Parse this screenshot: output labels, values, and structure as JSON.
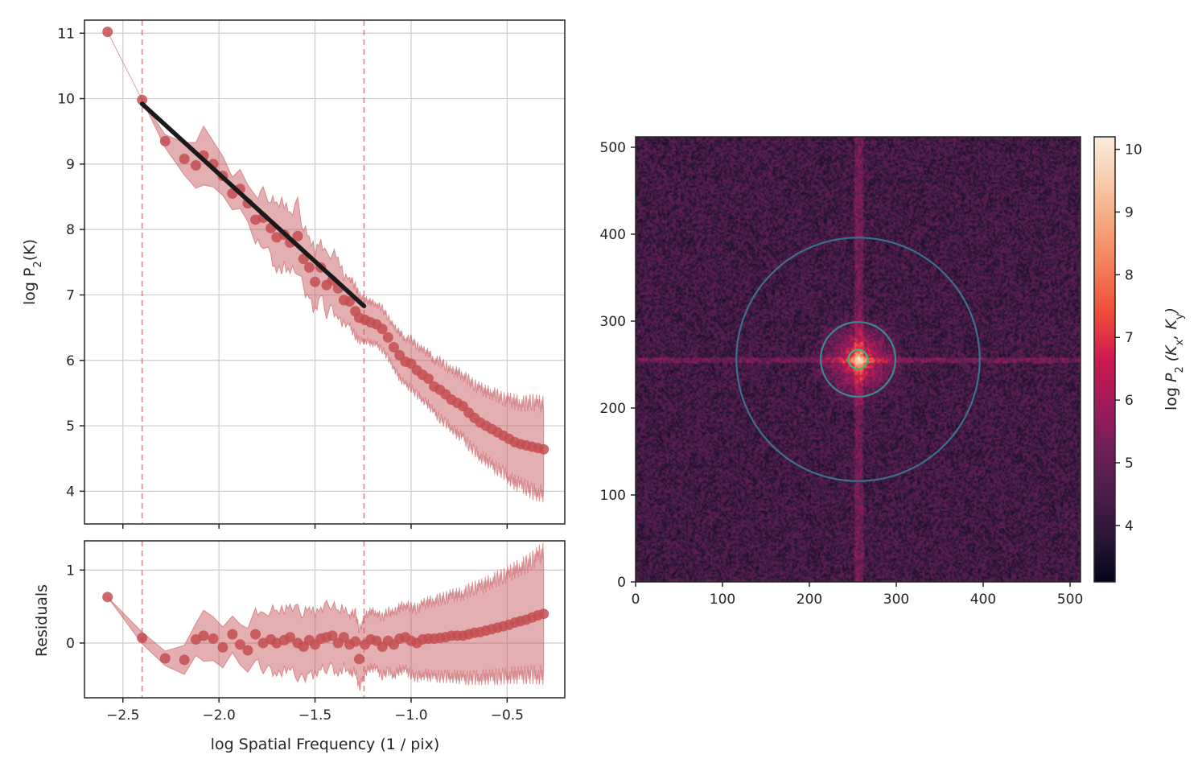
{
  "chart_data": [
    {
      "id": "power-spectrum",
      "type": "scatter",
      "xlim": [
        -2.7,
        -0.2
      ],
      "ylim": [
        3.5,
        11.2
      ],
      "xticks": [
        -2.5,
        -2.0,
        -1.5,
        -1.0,
        -0.5
      ],
      "xtick_labels": [
        "−2.5",
        "−2.0",
        "−1.5",
        "−1.0",
        "−0.5"
      ],
      "yticks": [
        4,
        5,
        6,
        7,
        8,
        9,
        10,
        11
      ],
      "ylabel_main": "log P",
      "ylabel_sub": "2",
      "ylabel_tail": "(K)",
      "grid": true,
      "color": "#c44e52",
      "fit_color": "#1a1a1a",
      "vlines": [
        -2.4,
        -1.245
      ],
      "fit_line": {
        "x": [
          -2.4,
          -1.245
        ],
        "y": [
          9.92,
          6.83
        ]
      },
      "points": {
        "x": [
          -2.58,
          -2.4,
          -2.28,
          -2.18,
          -2.12,
          -2.08,
          -2.03,
          -1.98,
          -1.93,
          -1.89,
          -1.85,
          -1.81,
          -1.77,
          -1.73,
          -1.7,
          -1.66,
          -1.63,
          -1.59,
          -1.56,
          -1.53,
          -1.5,
          -1.47,
          -1.44,
          -1.41,
          -1.38,
          -1.35,
          -1.32,
          -1.29,
          -1.27,
          -1.24,
          -1.21,
          -1.18,
          -1.15,
          -1.12,
          -1.09,
          -1.06,
          -1.03,
          -1.0,
          -0.97,
          -0.94,
          -0.91,
          -0.88,
          -0.85,
          -0.82,
          -0.79,
          -0.76,
          -0.73,
          -0.7,
          -0.67,
          -0.64,
          -0.61,
          -0.58,
          -0.55,
          -0.52,
          -0.49,
          -0.46,
          -0.43,
          -0.4,
          -0.37,
          -0.34,
          -0.31
        ],
        "y": [
          11.02,
          9.98,
          9.35,
          9.08,
          8.98,
          9.13,
          9.0,
          8.82,
          8.55,
          8.62,
          8.4,
          8.15,
          8.18,
          8.02,
          7.88,
          7.92,
          7.8,
          7.9,
          7.55,
          7.42,
          7.2,
          7.42,
          7.15,
          7.22,
          7.1,
          6.92,
          6.9,
          6.75,
          6.65,
          6.62,
          6.58,
          6.55,
          6.48,
          6.35,
          6.2,
          6.08,
          5.98,
          5.95,
          5.85,
          5.78,
          5.72,
          5.6,
          5.55,
          5.48,
          5.4,
          5.35,
          5.3,
          5.2,
          5.12,
          5.05,
          5.0,
          4.95,
          4.9,
          4.85,
          4.8,
          4.75,
          4.72,
          4.7,
          4.68,
          4.66,
          4.64
        ],
        "err": [
          0.0,
          0.0,
          0.1,
          0.25,
          0.35,
          0.45,
          0.35,
          0.3,
          0.25,
          0.3,
          0.28,
          0.3,
          0.32,
          0.35,
          0.4,
          0.4,
          0.38,
          0.4,
          0.38,
          0.35,
          0.38,
          0.35,
          0.35,
          0.35,
          0.35,
          0.3,
          0.3,
          0.3,
          0.28,
          0.25,
          0.25,
          0.25,
          0.25,
          0.25,
          0.25,
          0.28,
          0.28,
          0.3,
          0.3,
          0.3,
          0.32,
          0.32,
          0.35,
          0.35,
          0.35,
          0.38,
          0.38,
          0.4,
          0.4,
          0.42,
          0.42,
          0.45,
          0.45,
          0.45,
          0.48,
          0.5,
          0.5,
          0.52,
          0.55,
          0.55,
          0.55
        ]
      }
    },
    {
      "id": "residuals",
      "type": "scatter",
      "xlim": [
        -2.7,
        -0.2
      ],
      "ylim": [
        -0.75,
        1.4
      ],
      "yticks": [
        0,
        1
      ],
      "ytick_labels": [
        "0",
        "1"
      ],
      "xlabel": "log Spatial Frequency (1 / pix)",
      "ylabel": "Residuals",
      "grid": true,
      "color": "#c44e52",
      "vlines": [
        -2.4,
        -1.245
      ],
      "points": {
        "x": [
          -2.58,
          -2.4,
          -2.28,
          -2.18,
          -2.12,
          -2.08,
          -2.03,
          -1.98,
          -1.93,
          -1.89,
          -1.85,
          -1.81,
          -1.77,
          -1.73,
          -1.7,
          -1.66,
          -1.63,
          -1.59,
          -1.56,
          -1.53,
          -1.5,
          -1.47,
          -1.44,
          -1.41,
          -1.38,
          -1.35,
          -1.32,
          -1.29,
          -1.27,
          -1.24,
          -1.21,
          -1.18,
          -1.15,
          -1.12,
          -1.09,
          -1.06,
          -1.03,
          -1.0,
          -0.97,
          -0.94,
          -0.91,
          -0.88,
          -0.85,
          -0.82,
          -0.79,
          -0.76,
          -0.73,
          -0.7,
          -0.67,
          -0.64,
          -0.61,
          -0.58,
          -0.55,
          -0.52,
          -0.49,
          -0.46,
          -0.43,
          -0.4,
          -0.37,
          -0.34,
          -0.31
        ],
        "y": [
          0.63,
          0.07,
          -0.21,
          -0.23,
          0.05,
          0.1,
          0.06,
          -0.06,
          0.12,
          -0.02,
          -0.1,
          0.12,
          0.0,
          0.05,
          0.0,
          0.04,
          0.08,
          0.0,
          -0.05,
          0.04,
          -0.02,
          0.06,
          0.08,
          0.1,
          0.0,
          0.08,
          -0.02,
          0.02,
          -0.22,
          -0.02,
          0.05,
          0.03,
          -0.05,
          0.03,
          -0.02,
          0.06,
          0.08,
          0.03,
          0.0,
          0.05,
          0.06,
          0.06,
          0.07,
          0.08,
          0.1,
          0.1,
          0.1,
          0.12,
          0.14,
          0.15,
          0.17,
          0.19,
          0.21,
          0.23,
          0.25,
          0.28,
          0.3,
          0.32,
          0.35,
          0.38,
          0.4
        ],
        "err": [
          0.0,
          0.08,
          0.1,
          0.2,
          0.22,
          0.35,
          0.3,
          0.28,
          0.25,
          0.28,
          0.3,
          0.3,
          0.3,
          0.35,
          0.35,
          0.35,
          0.38,
          0.38,
          0.38,
          0.35,
          0.36,
          0.36,
          0.36,
          0.36,
          0.35,
          0.34,
          0.34,
          0.33,
          0.33,
          0.32,
          0.32,
          0.32,
          0.33,
          0.34,
          0.35,
          0.36,
          0.37,
          0.38,
          0.39,
          0.4,
          0.42,
          0.43,
          0.44,
          0.45,
          0.46,
          0.47,
          0.48,
          0.5,
          0.51,
          0.52,
          0.53,
          0.55,
          0.56,
          0.57,
          0.58,
          0.6,
          0.62,
          0.63,
          0.65,
          0.68,
          0.7
        ]
      }
    },
    {
      "id": "power-2d",
      "type": "heatmap",
      "xlim": [
        0,
        512
      ],
      "ylim": [
        0,
        512
      ],
      "xticks": [
        0,
        100,
        200,
        300,
        400,
        500
      ],
      "yticks": [
        0,
        100,
        200,
        300,
        400,
        500
      ],
      "center": [
        256,
        256
      ],
      "cross_width": 8,
      "rings": [
        {
          "radius": 140,
          "color": "#3a7090"
        },
        {
          "radius": 43,
          "color": "#3a8a90"
        },
        {
          "radius": 11,
          "color": "#3ab87a"
        }
      ],
      "colorbar": {
        "range": [
          3.1,
          10.2
        ],
        "ticks": [
          4,
          5,
          6,
          7,
          8,
          9,
          10
        ],
        "label_prefix": "log ",
        "label_P": "P",
        "label_sub": "2",
        "label_rest_1": " (K",
        "label_x": "x",
        "label_mid": ",  K",
        "label_y": "y",
        "label_close": ")",
        "colormap": "rocket",
        "stops": [
          "#03051a",
          "#2a1636",
          "#4c1d4b",
          "#701f57",
          "#a11a5b",
          "#cb1b4f",
          "#ee4a3a",
          "#f47a55",
          "#f6a47c",
          "#f8cbab",
          "#faebdd"
        ]
      }
    }
  ]
}
